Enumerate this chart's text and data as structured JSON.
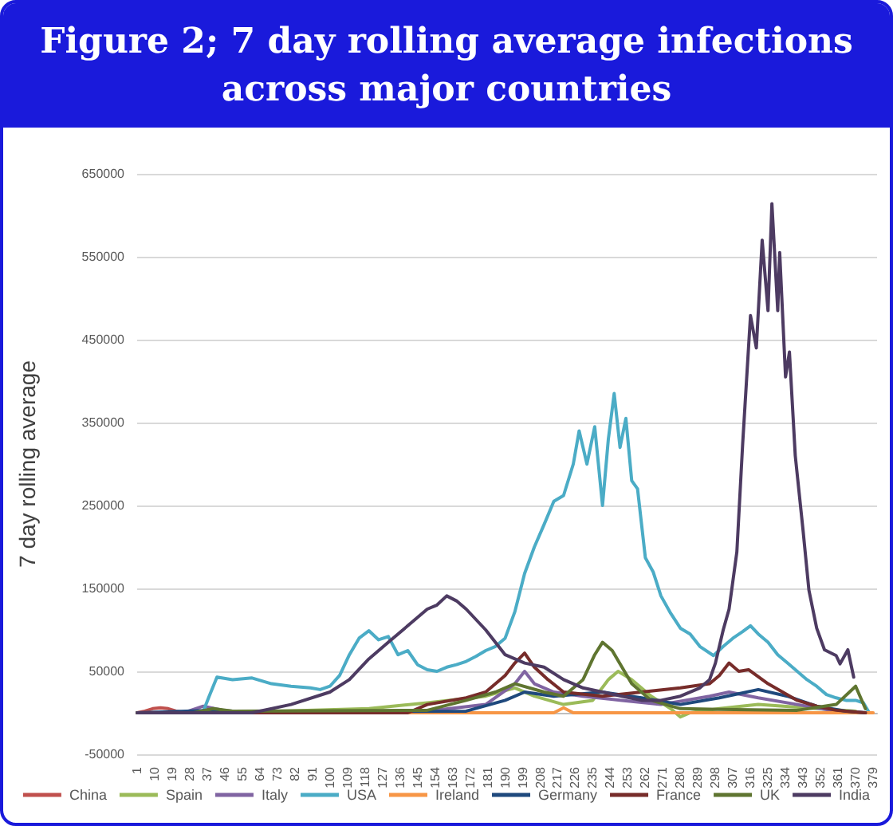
{
  "chart_data": {
    "type": "line",
    "title": "Figure 2; 7 day rolling average infections across major countries",
    "ylabel": "7 day rolling average",
    "xlim": [
      1,
      381
    ],
    "xticks": [
      1,
      10,
      19,
      28,
      37,
      46,
      55,
      64,
      73,
      82,
      91,
      100,
      109,
      118,
      127,
      136,
      145,
      154,
      163,
      172,
      181,
      190,
      199,
      208,
      217,
      226,
      235,
      244,
      253,
      262,
      271,
      280,
      289,
      298,
      307,
      316,
      325,
      334,
      343,
      352,
      361,
      370,
      379
    ],
    "ylim": [
      -50000,
      650000
    ],
    "yticks": [
      -50000,
      50000,
      150000,
      250000,
      350000,
      450000,
      550000,
      650000
    ],
    "grid": "y",
    "legend": "bottom",
    "marker": "none",
    "line_style": "solid",
    "series": [
      {
        "name": "China",
        "color": "#c0504d",
        "x": [
          1,
          5,
          9,
          13,
          17,
          21,
          26
        ],
        "values": [
          0,
          2000,
          5000,
          6000,
          5000,
          2000,
          0
        ]
      },
      {
        "name": "Spain",
        "color": "#9bbb59",
        "x": [
          1,
          30,
          40,
          60,
          120,
          150,
          180,
          195,
          205,
          220,
          235,
          243,
          248,
          255,
          265,
          275,
          280,
          285,
          300,
          320,
          350,
          370
        ],
        "values": [
          0,
          0,
          3000,
          1000,
          5000,
          12000,
          20000,
          30000,
          20000,
          10000,
          15000,
          40000,
          50000,
          40000,
          20000,
          5000,
          -5000,
          0,
          5000,
          10000,
          5000,
          2000
        ]
      },
      {
        "name": "Italy",
        "color": "#8064a2",
        "x": [
          1,
          25,
          35,
          45,
          60,
          150,
          180,
          195,
          200,
          205,
          215,
          230,
          250,
          270,
          295,
          305,
          320,
          340,
          360,
          375
        ],
        "values": [
          0,
          0,
          8000,
          3000,
          0,
          2000,
          10000,
          35000,
          50000,
          35000,
          25000,
          20000,
          15000,
          10000,
          20000,
          25000,
          18000,
          10000,
          2000,
          0
        ]
      },
      {
        "name": "USA",
        "color": "#4bacc6",
        "x": [
          1,
          30,
          35,
          38,
          42,
          50,
          60,
          70,
          80,
          90,
          95,
          100,
          105,
          110,
          115,
          120,
          125,
          130,
          135,
          140,
          145,
          150,
          155,
          160,
          165,
          170,
          175,
          180,
          185,
          190,
          195,
          200,
          205,
          210,
          215,
          220,
          225,
          228,
          232,
          236,
          240,
          243,
          246,
          249,
          252,
          255,
          258,
          262,
          266,
          270,
          275,
          280,
          285,
          290,
          297,
          302,
          307,
          312,
          316,
          320,
          325,
          330,
          335,
          340,
          345,
          350,
          355,
          360,
          365,
          370,
          374,
          377
        ],
        "values": [
          0,
          0,
          2000,
          20000,
          43000,
          40000,
          42000,
          35000,
          32000,
          30000,
          28000,
          32000,
          45000,
          70000,
          90000,
          99000,
          88000,
          92000,
          70000,
          75000,
          58000,
          52000,
          50000,
          55000,
          58000,
          62000,
          68000,
          75000,
          80000,
          90000,
          122000,
          168000,
          200000,
          227000,
          255000,
          262000,
          300000,
          340000,
          300000,
          345000,
          250000,
          330000,
          385000,
          320000,
          355000,
          280000,
          270000,
          187000,
          170000,
          141000,
          120000,
          102000,
          95000,
          80000,
          69000,
          80000,
          90000,
          98000,
          105000,
          95000,
          85000,
          70000,
          60000,
          50000,
          40000,
          32000,
          22000,
          18000,
          15000,
          15000,
          12000,
          0
        ]
      },
      {
        "name": "Ireland",
        "color": "#f79646",
        "x": [
          1,
          215,
          220,
          225,
          379
        ],
        "values": [
          0,
          0,
          6000,
          0,
          0
        ]
      },
      {
        "name": "Germany",
        "color": "#1f497d",
        "x": [
          1,
          40,
          50,
          170,
          190,
          200,
          215,
          240,
          260,
          280,
          300,
          320,
          335,
          350,
          365,
          375
        ],
        "values": [
          0,
          3000,
          1000,
          2000,
          15000,
          25000,
          20000,
          25000,
          18000,
          10000,
          18000,
          28000,
          20000,
          8000,
          2000,
          0
        ]
      },
      {
        "name": "France",
        "color": "#772c2a",
        "x": [
          1,
          140,
          150,
          170,
          180,
          190,
          195,
          200,
          205,
          212,
          220,
          240,
          260,
          280,
          295,
          300,
          305,
          310,
          315,
          325,
          340,
          350,
          360,
          375
        ],
        "values": [
          0,
          0,
          10000,
          18000,
          25000,
          45000,
          60000,
          72000,
          55000,
          40000,
          25000,
          20000,
          25000,
          30000,
          35000,
          45000,
          60000,
          50000,
          52000,
          35000,
          15000,
          8000,
          3000,
          0
        ]
      },
      {
        "name": "UK",
        "color": "#5f7530",
        "x": [
          1,
          30,
          40,
          50,
          150,
          170,
          185,
          195,
          210,
          220,
          230,
          236,
          240,
          245,
          250,
          255,
          265,
          280,
          300,
          340,
          360,
          370,
          375
        ],
        "values": [
          0,
          0,
          5000,
          2000,
          3000,
          15000,
          25000,
          35000,
          25000,
          20000,
          40000,
          70000,
          85000,
          75000,
          55000,
          35000,
          15000,
          5000,
          4000,
          3000,
          10000,
          32000,
          5000
        ]
      },
      {
        "name": "India",
        "color": "#4d3b62",
        "x": [
          1,
          60,
          80,
          100,
          110,
          120,
          130,
          140,
          150,
          155,
          160,
          165,
          170,
          180,
          190,
          200,
          210,
          220,
          230,
          240,
          250,
          260,
          270,
          280,
          290,
          295,
          298,
          302,
          305,
          309,
          312,
          316,
          319,
          322,
          325,
          327,
          330,
          331,
          334,
          336,
          339,
          343,
          346,
          350,
          354,
          360,
          362,
          366,
          369
        ],
        "values": [
          0,
          0,
          10000,
          25000,
          40000,
          65000,
          85000,
          105000,
          125000,
          130000,
          141000,
          135000,
          125000,
          100000,
          70000,
          60000,
          55000,
          40000,
          30000,
          25000,
          20000,
          15000,
          15000,
          20000,
          30000,
          40000,
          60000,
          100000,
          125000,
          194000,
          325000,
          479000,
          440000,
          570000,
          485000,
          614000,
          485000,
          555000,
          405000,
          435000,
          310000,
          220000,
          148000,
          102000,
          76000,
          69000,
          59000,
          76000,
          43000
        ]
      }
    ]
  }
}
